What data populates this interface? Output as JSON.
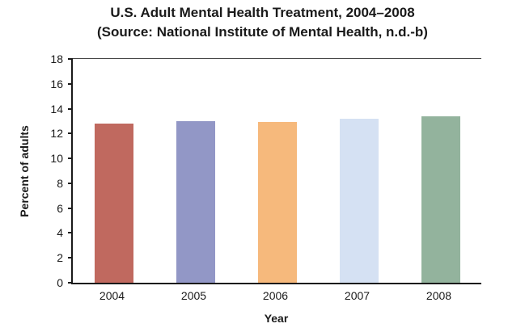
{
  "title_line1": "U.S. Adult Mental Health Treatment, 2004–2008",
  "title_line2": "(Source: National Institute of Mental Health, n.d.-b)",
  "chart_data": {
    "type": "bar",
    "title": "U.S. Adult Mental Health Treatment, 2004–2008 (Source: National Institute of Mental Health, n.d.-b)",
    "xlabel": "Year",
    "ylabel": "Percent of adults",
    "categories": [
      "2004",
      "2005",
      "2006",
      "2007",
      "2008"
    ],
    "values": [
      12.8,
      13.0,
      12.9,
      13.2,
      13.4
    ],
    "colors": [
      "#c0695f",
      "#9297c6",
      "#f6b97c",
      "#d5e1f3",
      "#93b39d"
    ],
    "ylim": [
      0,
      18
    ],
    "ytick_step": 2,
    "grid": "off",
    "legend": "none"
  }
}
